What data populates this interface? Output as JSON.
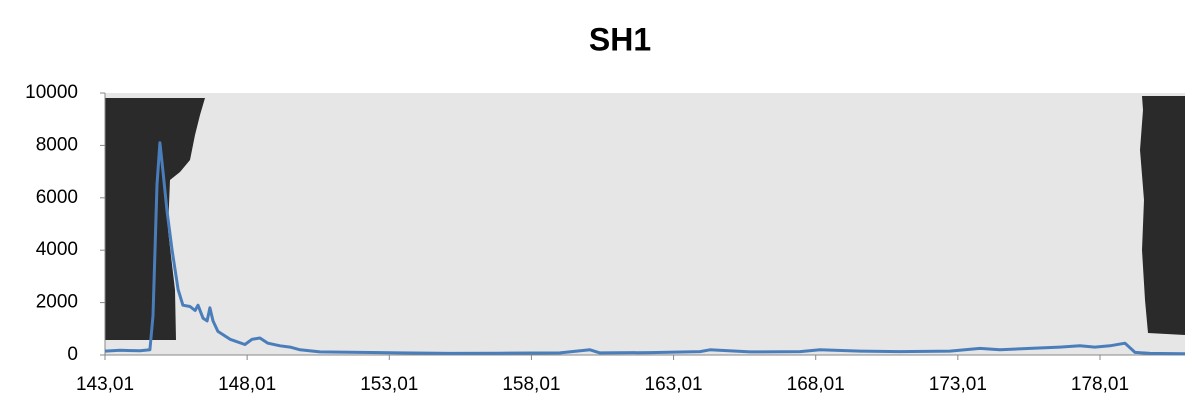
{
  "chart_data": {
    "type": "line",
    "title": "SH1",
    "x": [
      143.01,
      143.54,
      144.24,
      144.59,
      144.7,
      144.84,
      144.94,
      145.05,
      145.19,
      145.37,
      145.58,
      145.75,
      146.0,
      146.18,
      146.28,
      146.46,
      146.6,
      146.7,
      146.81,
      146.98,
      147.41,
      147.93,
      148.18,
      148.46,
      148.74,
      149.17,
      149.52,
      149.87,
      150.57,
      151.98,
      153.39,
      155.15,
      156.9,
      159.01,
      160.07,
      160.42,
      162.18,
      163.94,
      164.29,
      165.7,
      167.46,
      168.16,
      169.57,
      170.97,
      172.73,
      173.79,
      174.49,
      175.55,
      176.6,
      177.3,
      177.83,
      178.36,
      178.89,
      179.24,
      179.77,
      181.0
    ],
    "values": [
      150,
      180,
      160,
      200,
      1500,
      6500,
      8100,
      7000,
      5500,
      4000,
      2500,
      1900,
      1850,
      1700,
      1900,
      1400,
      1300,
      1800,
      1300,
      900,
      600,
      400,
      600,
      650,
      450,
      350,
      300,
      200,
      120,
      100,
      80,
      60,
      70,
      80,
      200,
      80,
      90,
      130,
      200,
      120,
      130,
      200,
      150,
      130,
      150,
      250,
      200,
      250,
      300,
      350,
      300,
      350,
      450,
      100,
      60,
      50
    ],
    "color": "#4a7ebb",
    "xlim": [
      143.01,
      181.0
    ],
    "xticks": [
      {
        "value": 143.01,
        "label": "143,01"
      },
      {
        "value": 148.01,
        "label": "148,01"
      },
      {
        "value": 153.01,
        "label": "153,01"
      },
      {
        "value": 158.01,
        "label": "158,01"
      },
      {
        "value": 163.01,
        "label": "163,01"
      },
      {
        "value": 168.01,
        "label": "168,01"
      },
      {
        "value": 173.01,
        "label": "173,01"
      },
      {
        "value": 178.01,
        "label": "178,01"
      }
    ],
    "ylim": [
      0,
      10000
    ],
    "yticks": [
      0,
      2000,
      4000,
      6000,
      8000,
      10000
    ]
  }
}
